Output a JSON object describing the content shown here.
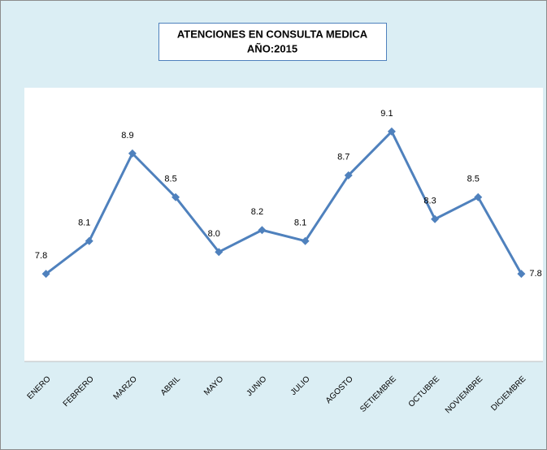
{
  "chart_data": {
    "type": "line",
    "title": "ATENCIONES EN CONSULTA MEDICA",
    "subtitle": "AÑO:2015",
    "categories": [
      "ENERO",
      "FEBRERO",
      "MARZO",
      "ABRIL",
      "MAYO",
      "JUNIO",
      "JULIO",
      "AGOSTO",
      "SETIEMBRE",
      "OCTUBRE",
      "NOVIEMBRE",
      "DICIEMBRE"
    ],
    "series": [
      {
        "color": "#4f81bd",
        "values": [
          7.8,
          8.1,
          8.9,
          8.5,
          8.0,
          8.2,
          8.1,
          8.7,
          9.1,
          8.3,
          8.5,
          7.8
        ],
        "value_labels": [
          "7.8",
          "8.1",
          "8.9",
          "8.5",
          "8.0",
          "8.2",
          "8.1",
          "8.7",
          "9.1",
          "8.3",
          "8.5",
          "7.8"
        ]
      }
    ],
    "ylim": [
      7,
      9.5
    ]
  }
}
